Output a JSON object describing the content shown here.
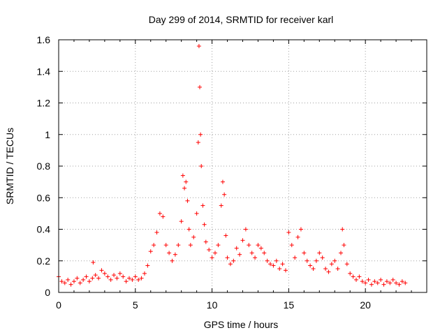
{
  "chart_data": {
    "type": "scatter",
    "title": "Day 299 of 2014, SRMTID for receiver karl",
    "xlabel": "GPS time / hours",
    "ylabel": "SRMTID / TECUs",
    "xlim": [
      0,
      24
    ],
    "ylim": [
      0,
      1.6
    ],
    "xticks": [
      0,
      5,
      10,
      15,
      20
    ],
    "yticks": [
      0,
      0.2,
      0.4,
      0.6,
      0.8,
      1,
      1.2,
      1.4,
      1.6
    ],
    "xtick_labels": [
      "0",
      "5",
      "10",
      "15",
      "20"
    ],
    "ytick_labels": [
      "0",
      "0.2",
      "0.4",
      "0.6",
      "0.8",
      "1",
      "1.2",
      "1.4",
      "1.6"
    ],
    "grid": true,
    "marker": "+",
    "color": "#ff0000",
    "series": [
      {
        "name": "SRMTID",
        "x": [
          0.0,
          0.2,
          0.4,
          0.6,
          0.8,
          1.0,
          1.2,
          1.4,
          1.6,
          1.8,
          2.0,
          2.2,
          2.25,
          2.4,
          2.6,
          2.8,
          3.0,
          3.2,
          3.4,
          3.6,
          3.8,
          4.0,
          4.2,
          4.4,
          4.6,
          4.8,
          5.0,
          5.2,
          5.4,
          5.6,
          5.8,
          6.0,
          6.2,
          6.4,
          6.6,
          6.8,
          7.0,
          7.2,
          7.4,
          7.6,
          7.8,
          8.0,
          8.1,
          8.2,
          8.3,
          8.4,
          8.5,
          8.6,
          8.8,
          9.0,
          9.1,
          9.15,
          9.2,
          9.25,
          9.3,
          9.4,
          9.5,
          9.6,
          9.8,
          10.0,
          10.2,
          10.4,
          10.6,
          10.7,
          10.8,
          10.9,
          11.0,
          11.2,
          11.4,
          11.6,
          11.8,
          12.0,
          12.2,
          12.4,
          12.6,
          12.8,
          13.0,
          13.2,
          13.4,
          13.6,
          13.8,
          14.0,
          14.2,
          14.4,
          14.6,
          14.8,
          15.0,
          15.2,
          15.4,
          15.6,
          15.8,
          16.0,
          16.2,
          16.4,
          16.6,
          16.8,
          17.0,
          17.2,
          17.4,
          17.6,
          17.8,
          18.0,
          18.2,
          18.4,
          18.5,
          18.6,
          18.8,
          19.0,
          19.2,
          19.4,
          19.6,
          19.8,
          20.0,
          20.2,
          20.4,
          20.6,
          20.8,
          21.0,
          21.2,
          21.4,
          21.6,
          21.8,
          22.0,
          22.2,
          22.4,
          22.6
        ],
        "y": [
          0.1,
          0.07,
          0.06,
          0.08,
          0.05,
          0.07,
          0.09,
          0.06,
          0.08,
          0.1,
          0.07,
          0.09,
          0.19,
          0.11,
          0.09,
          0.14,
          0.12,
          0.1,
          0.08,
          0.11,
          0.09,
          0.12,
          0.1,
          0.07,
          0.09,
          0.08,
          0.1,
          0.08,
          0.09,
          0.12,
          0.17,
          0.26,
          0.3,
          0.38,
          0.5,
          0.48,
          0.3,
          0.25,
          0.2,
          0.24,
          0.3,
          0.45,
          0.74,
          0.66,
          0.7,
          0.58,
          0.4,
          0.3,
          0.35,
          0.5,
          0.95,
          1.56,
          1.3,
          1.0,
          0.8,
          0.55,
          0.43,
          0.32,
          0.27,
          0.22,
          0.25,
          0.3,
          0.55,
          0.7,
          0.62,
          0.36,
          0.22,
          0.18,
          0.2,
          0.28,
          0.24,
          0.33,
          0.4,
          0.3,
          0.25,
          0.22,
          0.3,
          0.28,
          0.25,
          0.2,
          0.18,
          0.17,
          0.2,
          0.15,
          0.18,
          0.14,
          0.38,
          0.3,
          0.22,
          0.35,
          0.4,
          0.25,
          0.2,
          0.17,
          0.15,
          0.2,
          0.25,
          0.22,
          0.15,
          0.13,
          0.18,
          0.2,
          0.15,
          0.25,
          0.4,
          0.3,
          0.18,
          0.12,
          0.1,
          0.08,
          0.1,
          0.07,
          0.06,
          0.08,
          0.05,
          0.07,
          0.06,
          0.08,
          0.05,
          0.07,
          0.06,
          0.08,
          0.06,
          0.05,
          0.07,
          0.06
        ]
      }
    ]
  }
}
